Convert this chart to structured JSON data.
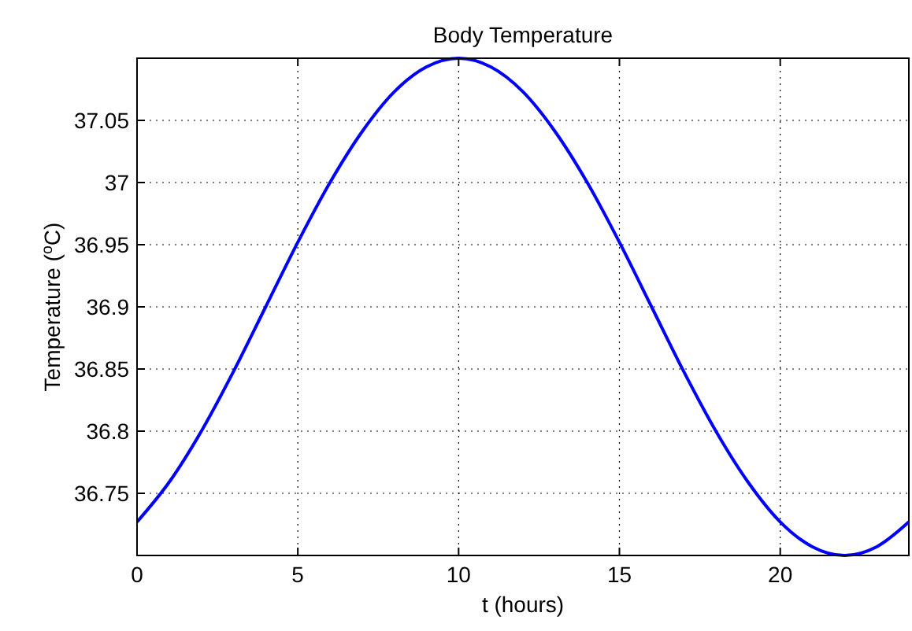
{
  "chart_data": {
    "type": "line",
    "title": "Body Temperature",
    "xlabel": "t (hours)",
    "ylabel": "Temperature ($^{o}$C)",
    "x": [
      0,
      1,
      2,
      3,
      4,
      5,
      6,
      7,
      8,
      9,
      10,
      11,
      12,
      13,
      14,
      15,
      16,
      17,
      18,
      19,
      20,
      21,
      22,
      23,
      24
    ],
    "series": [
      {
        "color": "#0000ff",
        "values": [
          36.727,
          36.759,
          36.8,
          36.848,
          36.9,
          36.952,
          37.0,
          37.041,
          37.073,
          37.093,
          37.1,
          37.093,
          37.073,
          37.041,
          37.0,
          36.952,
          36.9,
          36.848,
          36.8,
          36.759,
          36.727,
          36.707,
          36.7,
          36.707,
          36.727
        ]
      }
    ],
    "xlim": [
      0,
      24
    ],
    "xticks": [
      0,
      5,
      10,
      15,
      20
    ],
    "ylim": [
      36.7,
      37.1
    ],
    "yticks": [
      36.75,
      36.8,
      36.85,
      36.9,
      36.95,
      37,
      37.05
    ],
    "grid": true,
    "marker": "none",
    "line_style": "solid"
  }
}
